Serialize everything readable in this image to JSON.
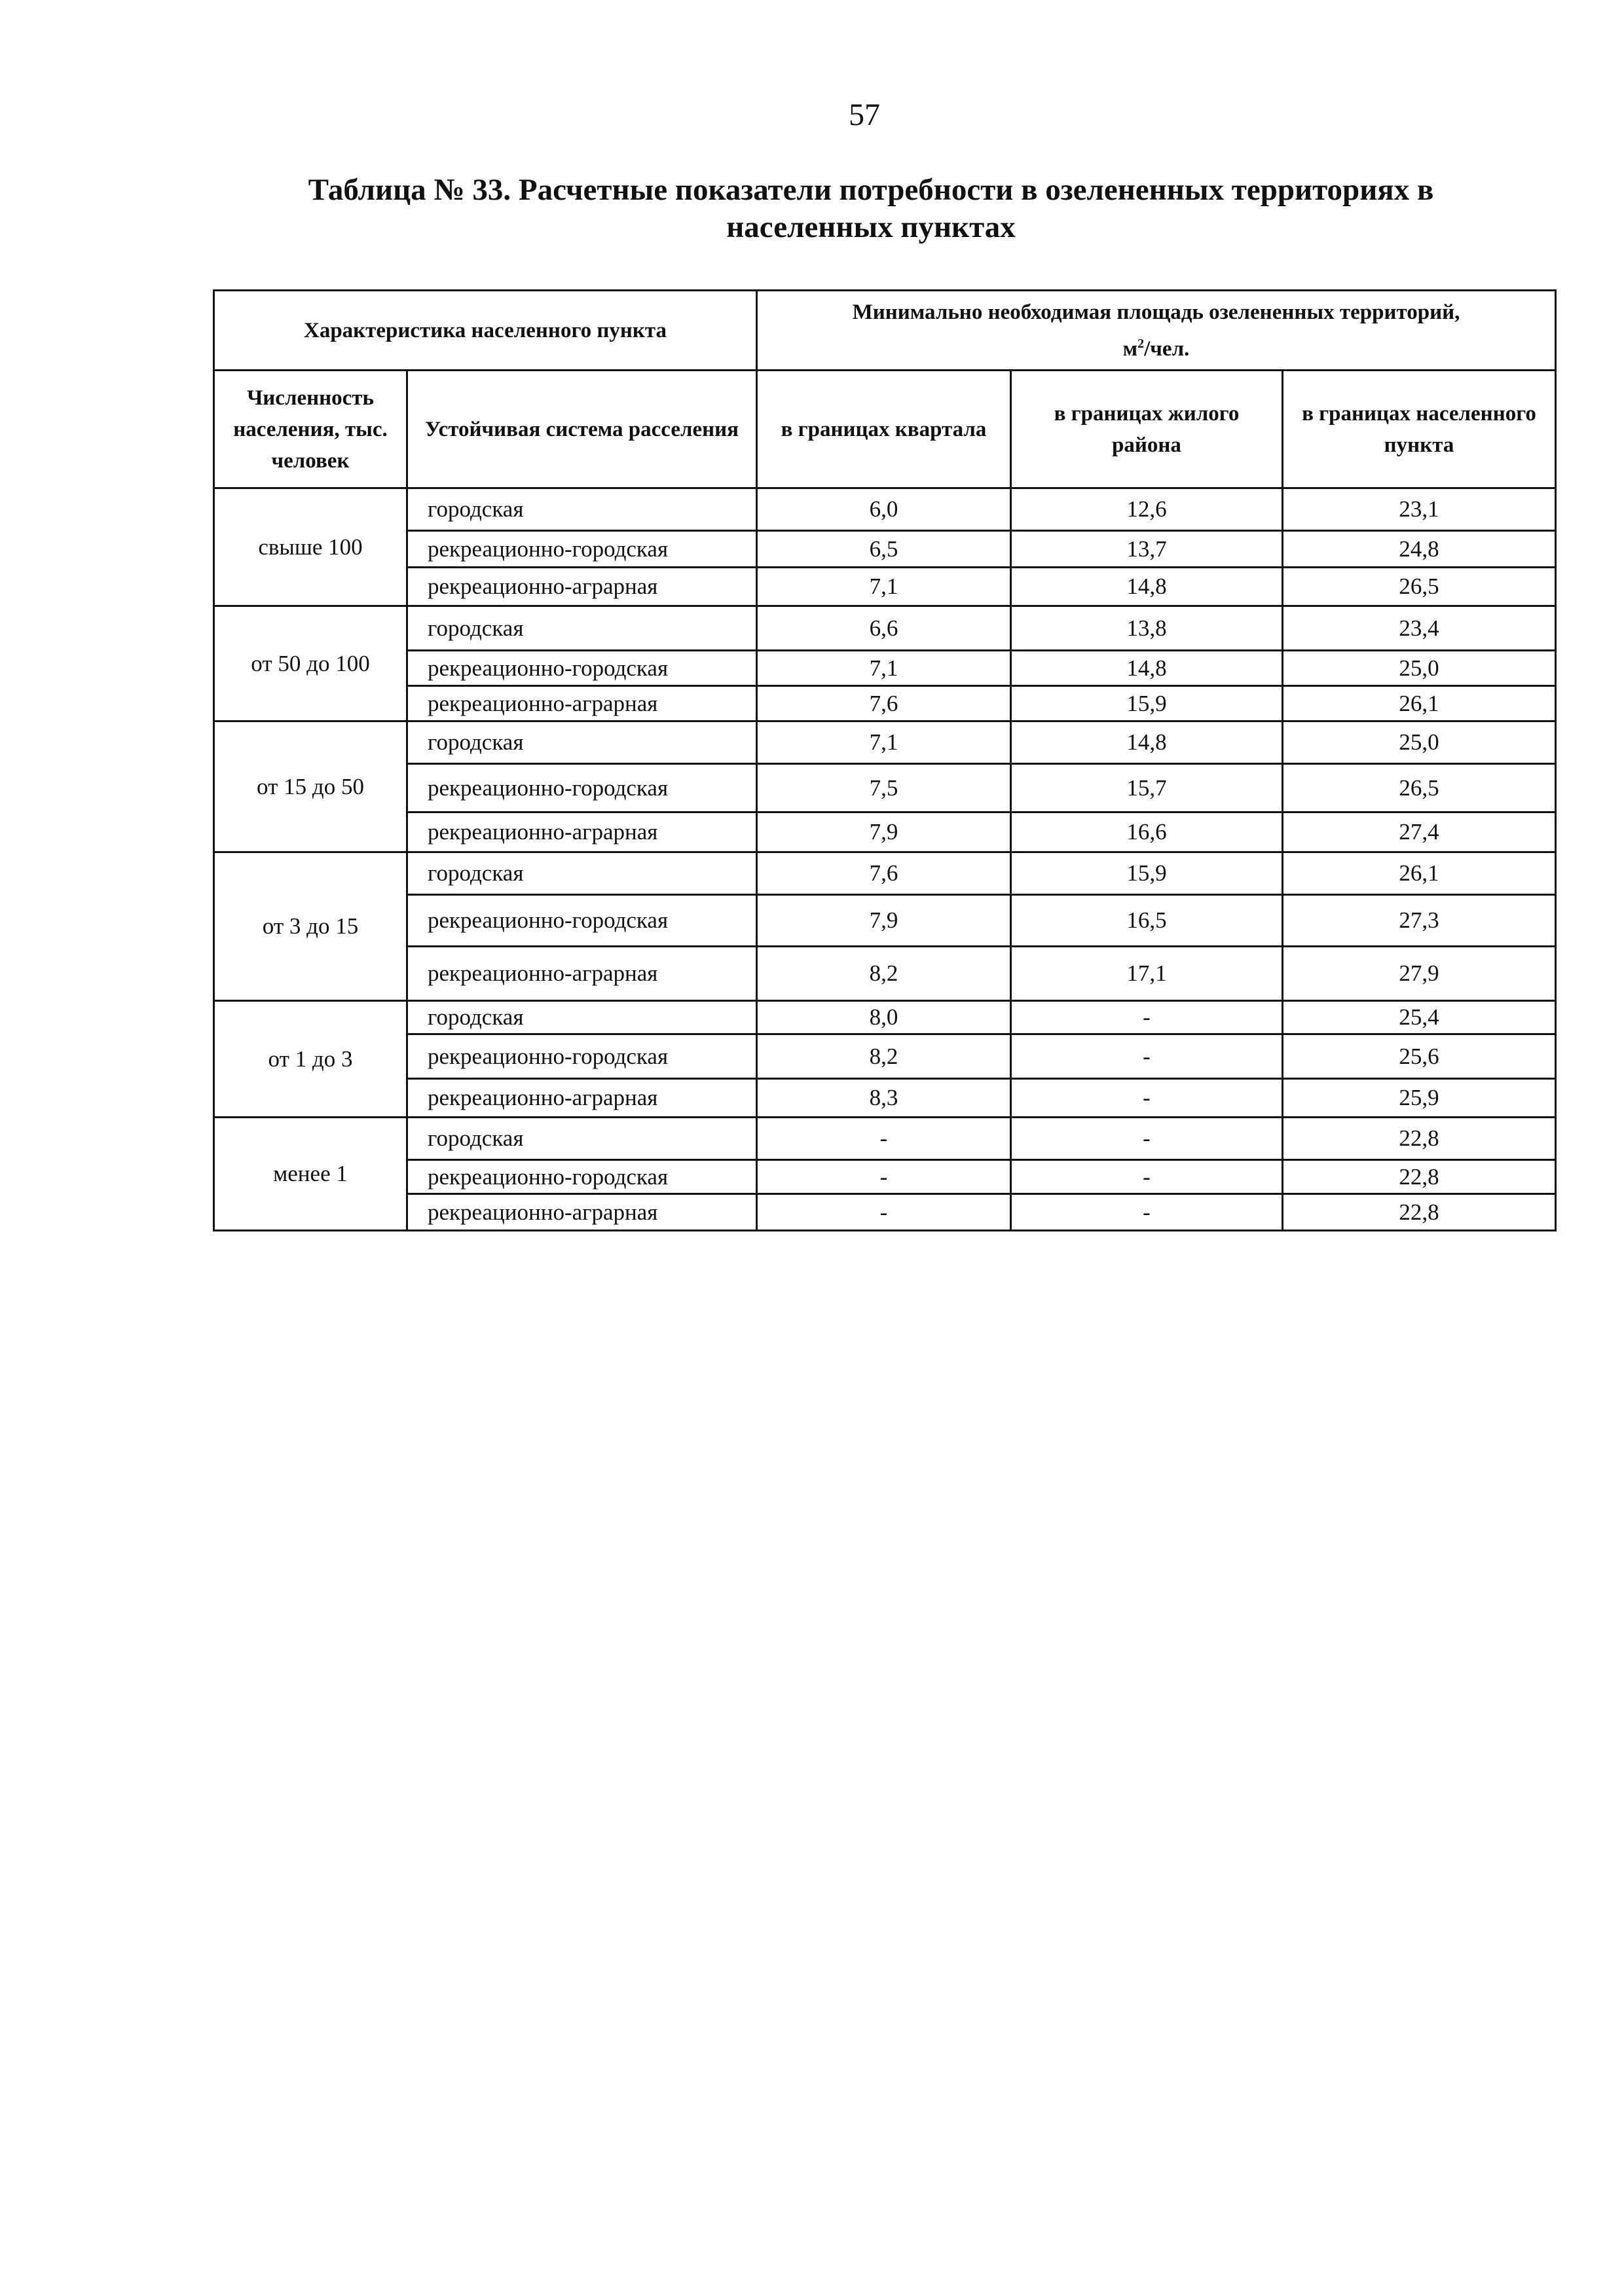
{
  "page_number": "57",
  "title": "Таблица № 33. Расчетные показатели потребности в озелененных территориях в населенных пунктах",
  "table": {
    "header": {
      "characteristic": "Характеристика населенного пункта",
      "min_area": "Минимально необходимая площадь озелененных территорий,",
      "min_area_unit_base": "м",
      "min_area_unit_sup": "2",
      "min_area_unit_rest": "/чел.",
      "population": "Численность населения, тыс. человек",
      "system": "Устойчивая система расселения",
      "block": "в границах квартала",
      "district": "в границах жилого района",
      "settlement": "в границах населенного пункта"
    },
    "groups": [
      {
        "population": "свыше 100",
        "rows": [
          {
            "system": "городская",
            "block": "6,0",
            "district": "12,6",
            "settlement": "23,1"
          },
          {
            "system": "рекреационно-городская",
            "block": "6,5",
            "district": "13,7",
            "settlement": "24,8"
          },
          {
            "system": "рекреационно-аграрная",
            "block": "7,1",
            "district": "14,8",
            "settlement": "26,5"
          }
        ]
      },
      {
        "population": "от 50 до 100",
        "rows": [
          {
            "system": "городская",
            "block": "6,6",
            "district": "13,8",
            "settlement": "23,4"
          },
          {
            "system": "рекреационно-городская",
            "block": "7,1",
            "district": "14,8",
            "settlement": "25,0"
          },
          {
            "system": "рекреационно-аграрная",
            "block": "7,6",
            "district": "15,9",
            "settlement": "26,1"
          }
        ]
      },
      {
        "population": "от 15 до 50",
        "rows": [
          {
            "system": "городская",
            "block": "7,1",
            "district": "14,8",
            "settlement": "25,0"
          },
          {
            "system": "рекреационно-городская",
            "block": "7,5",
            "district": "15,7",
            "settlement": "26,5"
          },
          {
            "system": "рекреационно-аграрная",
            "block": "7,9",
            "district": "16,6",
            "settlement": "27,4"
          }
        ]
      },
      {
        "population": "от 3 до 15",
        "rows": [
          {
            "system": "городская",
            "block": "7,6",
            "district": "15,9",
            "settlement": "26,1"
          },
          {
            "system": "рекреационно-городская",
            "block": "7,9",
            "district": "16,5",
            "settlement": "27,3"
          },
          {
            "system": "рекреационно-аграрная",
            "block": "8,2",
            "district": "17,1",
            "settlement": "27,9"
          }
        ]
      },
      {
        "population": "от 1 до 3",
        "rows": [
          {
            "system": "городская",
            "block": "8,0",
            "district": "-",
            "settlement": "25,4"
          },
          {
            "system": "рекреационно-городская",
            "block": "8,2",
            "district": "-",
            "settlement": "25,6"
          },
          {
            "system": "рекреационно-аграрная",
            "block": "8,3",
            "district": "-",
            "settlement": "25,9"
          }
        ]
      },
      {
        "population": "менее 1",
        "rows": [
          {
            "system": "городская",
            "block": "-",
            "district": "-",
            "settlement": "22,8"
          },
          {
            "system": "рекреационно-городская",
            "block": "-",
            "district": "-",
            "settlement": "22,8"
          },
          {
            "system": "рекреационно-аграрная",
            "block": "-",
            "district": "-",
            "settlement": "22,8"
          }
        ]
      }
    ]
  }
}
